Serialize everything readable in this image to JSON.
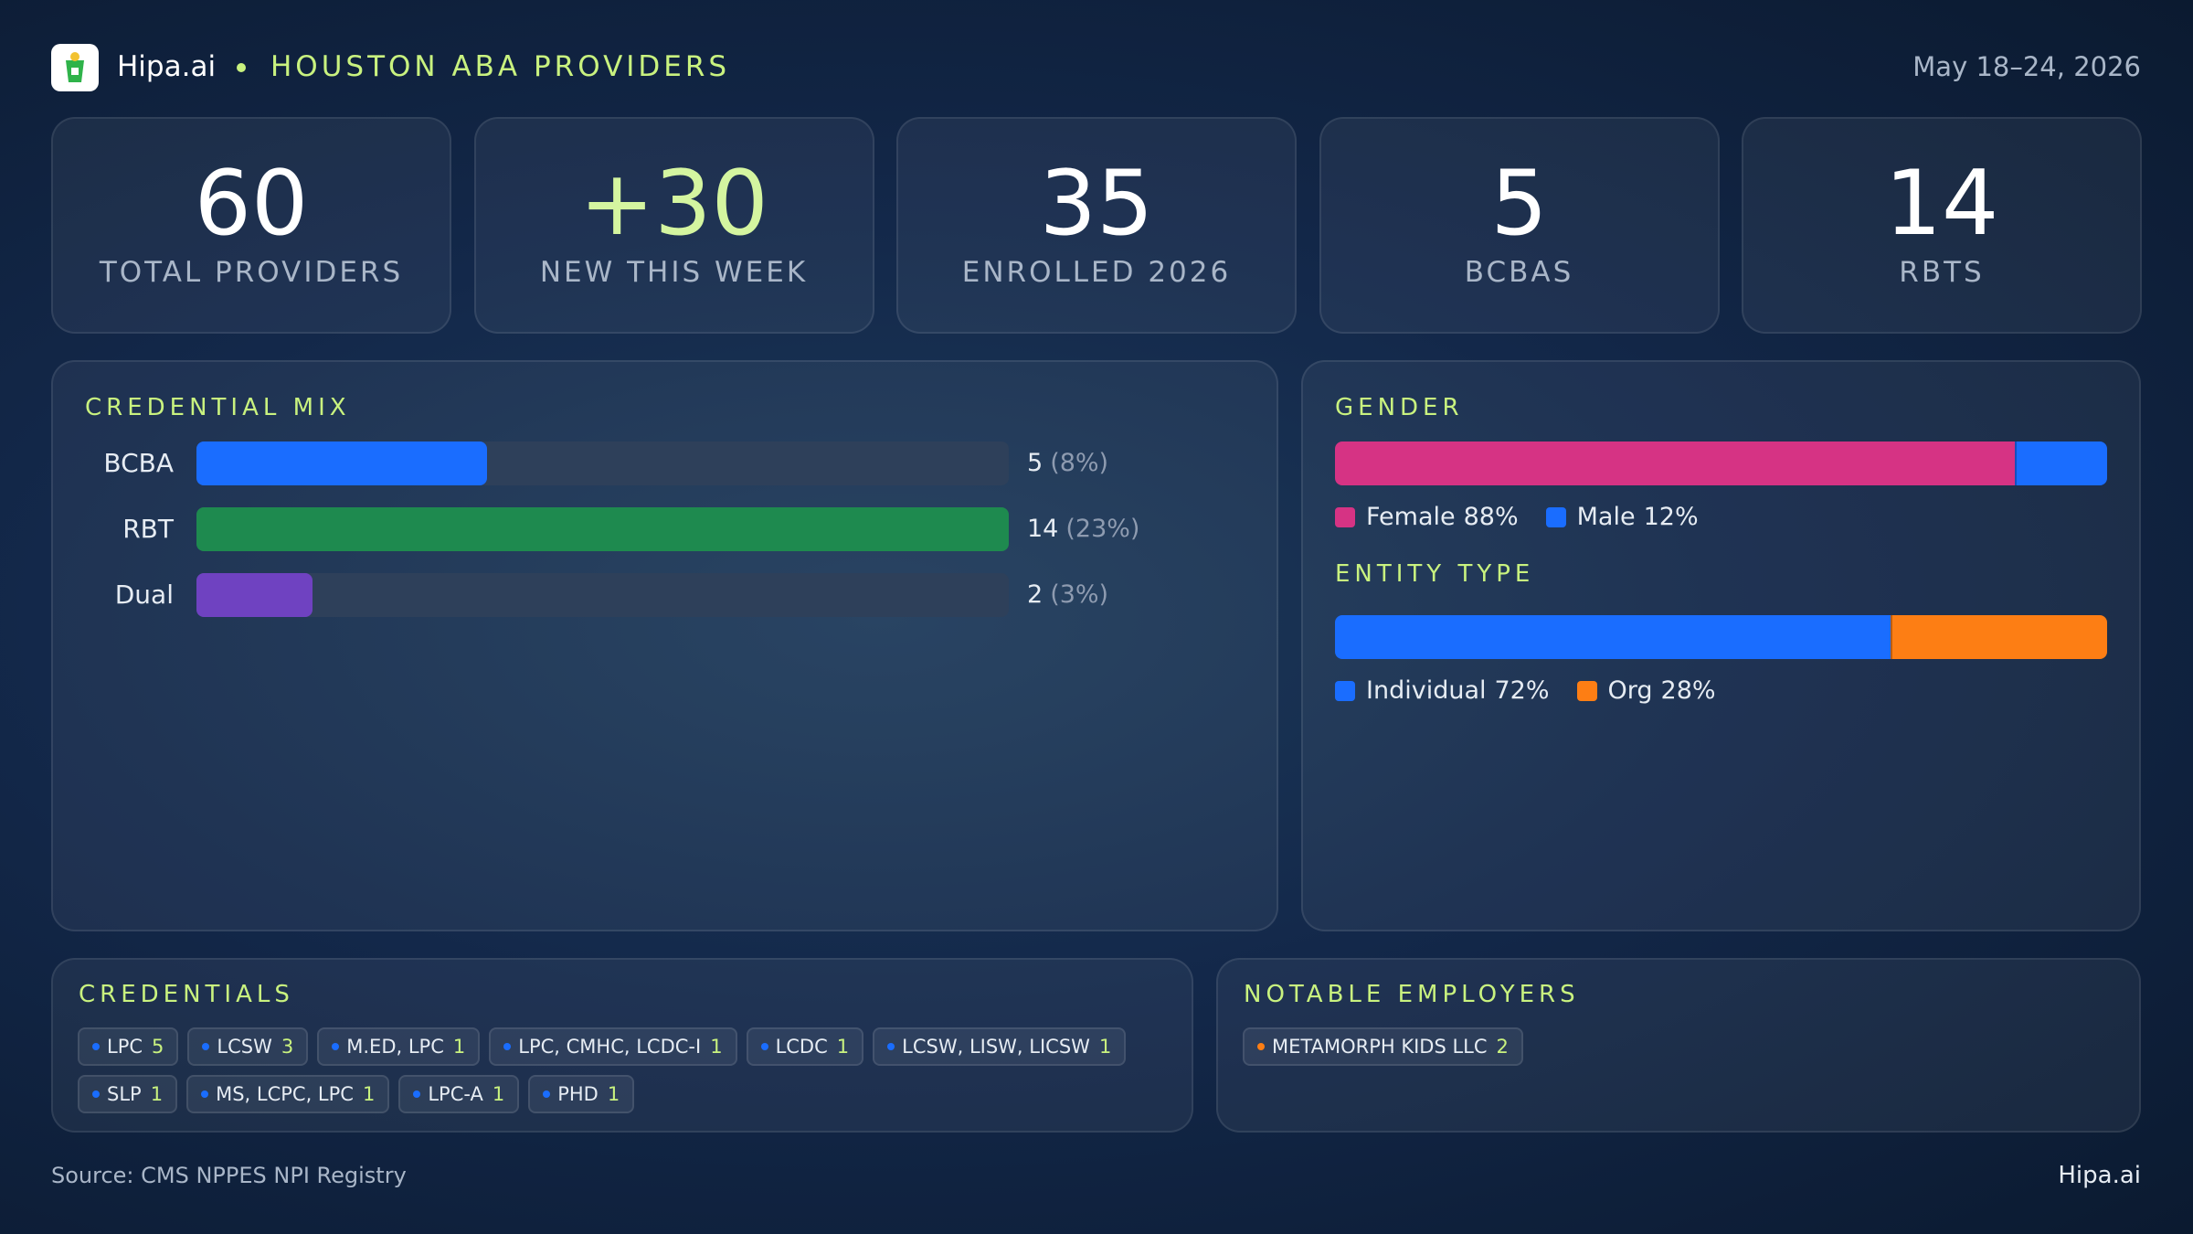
{
  "header": {
    "brand": "Hipa.ai",
    "title": "HOUSTON ABA PROVIDERS",
    "date": "May 18–24, 2026"
  },
  "kpis": [
    {
      "value": 60,
      "label": "TOTAL PROVIDERS"
    },
    {
      "value": "+30",
      "label": "NEW THIS WEEK",
      "color": "#d4f5a0"
    },
    {
      "value": 35,
      "label": "ENROLLED 2026"
    },
    {
      "value": 5,
      "label": "BCBAS"
    },
    {
      "value": 14,
      "label": "RBTS"
    }
  ],
  "credential_mix": {
    "title": "CREDENTIAL MIX",
    "xlim": [
      0,
      14
    ],
    "categories": [
      "BCBA",
      "RBT",
      "Dual"
    ],
    "values": [
      5,
      14,
      2
    ],
    "percent_labels": [
      "(8%)",
      "(23%)",
      "(3%)"
    ],
    "colors": [
      "#1a6dff",
      "#1e8a4f",
      "#6f42c1"
    ]
  },
  "gender": {
    "title": "GENDER",
    "xlim": [
      0,
      100
    ],
    "segments": [
      {
        "name": "Female",
        "value": 88,
        "label": "88%",
        "color": "#d63384"
      },
      {
        "name": "Male",
        "value": 12,
        "label": "12%",
        "color": "#1a6dff"
      }
    ]
  },
  "entity_type": {
    "title": "ENTITY TYPE",
    "xlim": [
      0,
      100
    ],
    "segments": [
      {
        "name": "Individual",
        "value": 72,
        "label": "72%",
        "color": "#1a6dff"
      },
      {
        "name": "Org",
        "value": 28,
        "label": "28%",
        "color": "#fd7e14"
      }
    ]
  },
  "credentials": {
    "title": "CREDENTIALS",
    "dot_color": "#1a6dff",
    "items": [
      {
        "label": "LPC",
        "count": 5
      },
      {
        "label": "LCSW",
        "count": 3
      },
      {
        "label": "M.ED, LPC",
        "count": 1
      },
      {
        "label": "LPC, CMHC, LCDC-I",
        "count": 1
      },
      {
        "label": "LCDC",
        "count": 1
      },
      {
        "label": "LCSW, LISW, LICSW",
        "count": 1
      },
      {
        "label": "SLP",
        "count": 1
      },
      {
        "label": "MS, LCPC, LPC",
        "count": 1
      },
      {
        "label": "LPC-A",
        "count": 1
      },
      {
        "label": "PHD",
        "count": 1
      }
    ]
  },
  "notable_employers": {
    "title": "NOTABLE EMPLOYERS",
    "dot_color": "#fd7e14",
    "items": [
      {
        "label": "METAMORPH KIDS LLC",
        "count": 2
      }
    ]
  },
  "footer": {
    "source": "Source: CMS NPPES NPI Registry",
    "brand": "Hipa.ai"
  }
}
